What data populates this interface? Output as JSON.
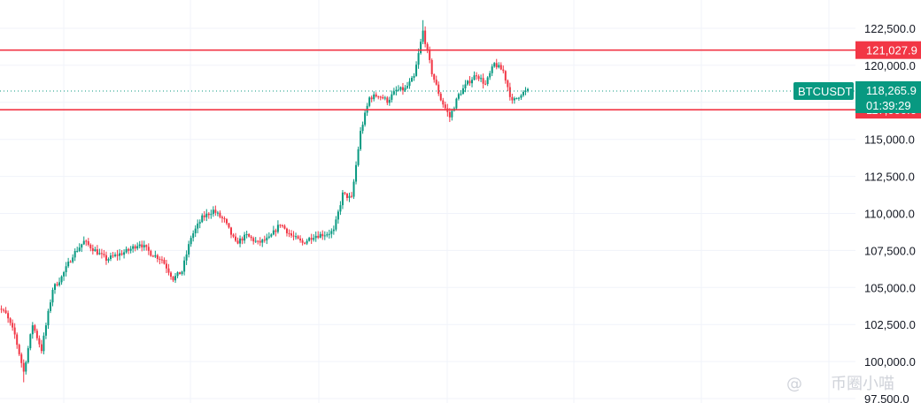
{
  "chart_data": {
    "type": "candlestick",
    "symbol": "BTCUSDT",
    "last_price": "118,265.9",
    "countdown": "01:39:29",
    "y_axis": {
      "ylim": [
        97500,
        123500
      ],
      "ticks": [
        97500,
        100000,
        102500,
        105000,
        107500,
        110000,
        112500,
        115000,
        117500,
        120000,
        122500
      ],
      "tick_labels": [
        "97,500.0",
        "100,000.0",
        "102,500.0",
        "105,000.0",
        "107,500.0",
        "110,000.0",
        "112,500.0",
        "115,000.0",
        "117,500.0",
        "120,000.0",
        "122,500.0"
      ]
    },
    "horizontal_lines": [
      {
        "value": 121027.9,
        "label": "121,027.9",
        "color": "#f23645"
      },
      {
        "value": 117000.6,
        "label": "117,000.6",
        "color": "#f23645"
      }
    ],
    "colors": {
      "up": "#089981",
      "down": "#f23645",
      "grid": "#f0f3fa",
      "last_price_line": "#089981",
      "symbol_badge": "#089981"
    },
    "anchors": [
      [
        0,
        103900
      ],
      [
        5,
        103200
      ],
      [
        9,
        101800
      ],
      [
        13,
        99300
      ],
      [
        17,
        102500
      ],
      [
        21,
        100800
      ],
      [
        26,
        104900
      ],
      [
        30,
        105700
      ],
      [
        35,
        107200
      ],
      [
        40,
        108100
      ],
      [
        45,
        107500
      ],
      [
        50,
        106900
      ],
      [
        55,
        107200
      ],
      [
        60,
        107500
      ],
      [
        65,
        108000
      ],
      [
        70,
        107300
      ],
      [
        75,
        106900
      ],
      [
        80,
        105600
      ],
      [
        84,
        106100
      ],
      [
        88,
        108400
      ],
      [
        93,
        109700
      ],
      [
        98,
        110200
      ],
      [
        103,
        109500
      ],
      [
        108,
        108000
      ],
      [
        113,
        108500
      ],
      [
        118,
        108000
      ],
      [
        123,
        108300
      ],
      [
        128,
        109300
      ],
      [
        133,
        108500
      ],
      [
        138,
        108000
      ],
      [
        143,
        108500
      ],
      [
        148,
        108600
      ],
      [
        152,
        108800
      ],
      [
        156,
        111300
      ],
      [
        160,
        111000
      ],
      [
        164,
        115500
      ],
      [
        168,
        117800
      ],
      [
        172,
        118000
      ],
      [
        176,
        117600
      ],
      [
        180,
        118300
      ],
      [
        184,
        118400
      ],
      [
        188,
        119200
      ],
      [
        192,
        122300
      ],
      [
        196,
        119500
      ],
      [
        200,
        117700
      ],
      [
        204,
        116500
      ],
      [
        208,
        118000
      ],
      [
        212,
        118800
      ],
      [
        216,
        119400
      ],
      [
        220,
        118700
      ],
      [
        224,
        120100
      ],
      [
        228,
        119600
      ],
      [
        232,
        117500
      ],
      [
        236,
        118100
      ],
      [
        239,
        118265.9
      ]
    ]
  },
  "watermark": {
    "symbol": "@",
    "text": "币圈小喵"
  }
}
